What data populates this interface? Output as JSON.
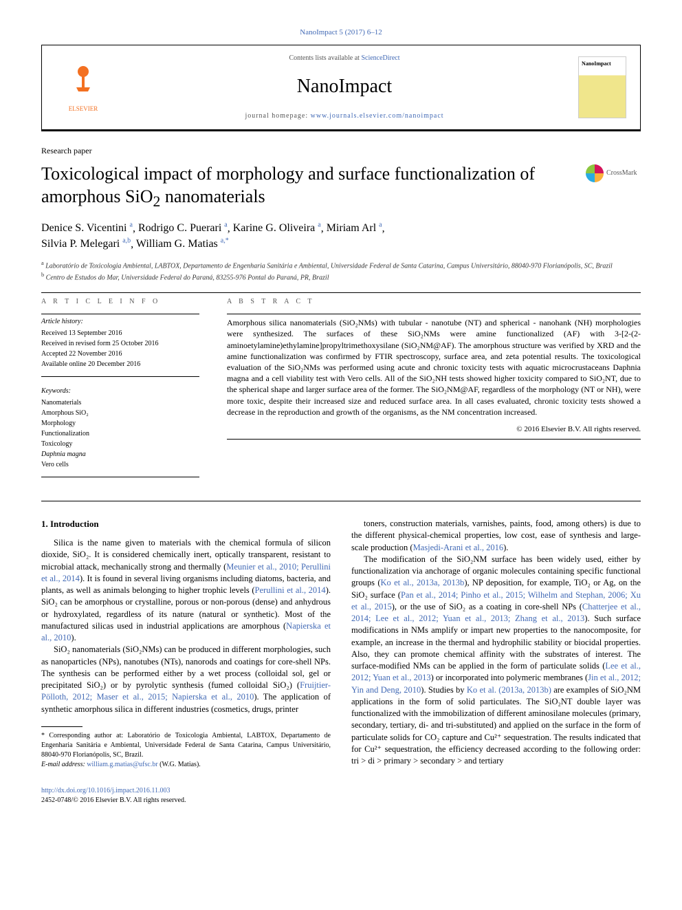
{
  "top": {
    "citation": "NanoImpact 5 (2017) 6–12"
  },
  "header": {
    "contents_prefix": "Contents lists available at ",
    "contents_link": "ScienceDirect",
    "journal": "NanoImpact",
    "homepage_prefix": "journal homepage: ",
    "homepage_url": "www.journals.elsevier.com/nanoimpact",
    "publisher_name": "ELSEVIER",
    "cover_label": "NanoImpact"
  },
  "paper": {
    "type": "Research paper",
    "title_line1": "Toxicological impact of morphology and surface functionalization of",
    "title_line2": "amorphous SiO",
    "title_sub": "2",
    "title_line2_end": " nanomaterials",
    "crossmark": "CrossMark",
    "authors_html": "Denice S. Vicentini",
    "authors": [
      {
        "name": "Denice S. Vicentini",
        "sup": "a"
      },
      {
        "name": "Rodrigo C. Puerari",
        "sup": "a"
      },
      {
        "name": "Karine G. Oliveira",
        "sup": "a"
      },
      {
        "name": "Miriam Arl",
        "sup": "a"
      },
      {
        "name": "Silvia P. Melegari",
        "sup": "a,b"
      },
      {
        "name": "William G. Matias",
        "sup": "a,*"
      }
    ],
    "affiliations": {
      "a": "Laboratório de Toxicologia Ambiental, LABTOX, Departamento de Engenharia Sanitária e Ambiental, Universidade Federal de Santa Catarina, Campus Universitário, 88040-970 Florianópolis, SC, Brazil",
      "b": "Centro de Estudos do Mar, Universidade Federal do Paraná, 83255-976 Pontal do Paraná, PR, Brazil"
    }
  },
  "meta": {
    "info_label": "a r t i c l e   i n f o",
    "history_head": "Article history:",
    "history": [
      "Received 13 September 2016",
      "Received in revised form 25 October 2016",
      "Accepted 22 November 2016",
      "Available online 20 December 2016"
    ],
    "keywords_head": "Keywords:",
    "keywords": [
      "Nanomaterials",
      "Amorphous SiO₂",
      "Morphology",
      "Functionalization",
      "Toxicology",
      "Daphnia magna",
      "Vero cells"
    ]
  },
  "abstract": {
    "label": "a b s t r a c t",
    "text": "Amorphous silica nanomaterials (SiO₂NMs) with tubular - nanotube (NT) and spherical - nanohank (NH) morphologies were synthesized. The surfaces of these SiO₂NMs were amine functionalized (AF) with 3-[2-(2-aminoetylamine)ethylamine]propyltrimethoxysilane (SiO₂NM@AF). The amorphous structure was verified by XRD and the amine functionalization was confirmed by FTIR spectroscopy, surface area, and zeta potential results. The toxicological evaluation of the SiO₂NMs was performed using acute and chronic toxicity tests with aquatic microcrustaceans Daphnia magna and a cell viability test with Vero cells. All of the SiO₂NH tests showed higher toxicity compared to SiO₂NT, due to the spherical shape and larger surface area of the former. The SiO₂NM@AF, regardless of the morphology (NT or NH), were more toxic, despite their increased size and reduced surface area. In all cases evaluated, chronic toxicity tests showed a decrease in the reproduction and growth of the organisms, as the NM concentration increased.",
    "copyright": "© 2016 Elsevier B.V. All rights reserved."
  },
  "body": {
    "heading": "1. Introduction",
    "p1": "Silica is the name given to materials with the chemical formula of silicon dioxide, SiO₂. It is considered chemically inert, optically transparent, resistant to microbial attack, mechanically strong and thermally (",
    "p1_cite1": "Meunier et al., 2010; Perullini et al., 2014",
    "p1b": "). It is found in several living organisms including diatoms, bacteria, and plants, as well as animals belonging to higher trophic levels (",
    "p1_cite2": "Perullini et al., 2014",
    "p1c": "). SiO₂ can be amorphous or crystalline, porous or non-porous (dense) and anhydrous or hydroxylated, regardless of its nature (natural or synthetic). Most of the manufactured silicas used in industrial applications are amorphous (",
    "p1_cite3": "Napierska et al., 2010",
    "p1d": ").",
    "p2a": "SiO₂ nanomaterials (SiO₂NMs) can be produced in different morphologies, such as nanoparticles (NPs), nanotubes (NTs), nanorods and coatings for core-shell NPs. The synthesis can be performed either by a wet process (colloidal sol, gel or precipitated SiO₂) or by pyrolytic synthesis (fumed colloidal SiO₂) (",
    "p2_cite1": "Fruijtier-Pölloth, 2012; Maser et al., 2015; Napierska et al., 2010",
    "p2b": "). The application of synthetic amorphous silica in different industries (cosmetics, drugs, printer",
    "p3a": "toners, construction materials, varnishes, paints, food, among others) is due to the different physical-chemical properties, low cost, ease of synthesis and large-scale production (",
    "p3_cite1": "Masjedi-Arani et al., 2016",
    "p3b": ").",
    "p4a": "The modification of the SiO₂NM surface has been widely used, either by functionalization via anchorage of organic molecules containing specific functional groups (",
    "p4_cite1": "Ko et al., 2013a, 2013b",
    "p4b": "), NP deposition, for example, TiO₂ or Ag, on the SiO₂ surface (",
    "p4_cite2": "Pan et al., 2014; Pinho et al., 2015; Wilhelm and Stephan, 2006; Xu et al., 2015",
    "p4c": "), or the use of SiO₂ as a coating in core-shell NPs (",
    "p4_cite3": "Chatterjee et al., 2014; Lee et al., 2012; Yuan et al., 2013; Zhang et al., 2013",
    "p4d": "). Such surface modifications in NMs amplify or impart new properties to the nanocomposite, for example, an increase in the thermal and hydrophilic stability or biocidal properties. Also, they can promote chemical affinity with the substrates of interest. The surface-modified NMs can be applied in the form of particulate solids (",
    "p4_cite4": "Lee et al., 2012; Yuan et al., 2013",
    "p4e": ") or incorporated into polymeric membranes (",
    "p4_cite5": "Jin et al., 2012; Yin and Deng, 2010",
    "p4f": "). Studies by ",
    "p4_cite6": "Ko et al. (2013a, 2013b)",
    "p4g": " are examples of SiO₂NM applications in the form of solid particulates. The SiO₂NT double layer was functionalized with the immobilization of different aminosilane molecules (primary, secondary, tertiary, di- and tri-substituted) and applied on the surface in the form of particulate solids for CO₂ capture and Cu²⁺ sequestration. The results indicated that for Cu²⁺ sequestration, the efficiency decreased according to the following order: tri > di > primary > secondary > and tertiary"
  },
  "footnote": {
    "corr": "* Corresponding author at: Laboratório de Toxicologia Ambiental, LABTOX, Departamento de Engenharia Sanitária e Ambiental, Universidade Federal de Santa Catarina, Campus Universitário, 88040-970 Florianópolis, SC, Brazil.",
    "email_label": "E-mail address: ",
    "email": "william.g.matias@ufsc.br",
    "email_name": " (W.G. Matias)."
  },
  "footer": {
    "doi": "http://dx.doi.org/10.1016/j.impact.2016.11.003",
    "issn_copy": "2452-0748/© 2016 Elsevier B.V. All rights reserved."
  },
  "colors": {
    "link": "#4169b5",
    "publisher_orange": "#f37021",
    "text": "#000000",
    "muted": "#555555"
  }
}
